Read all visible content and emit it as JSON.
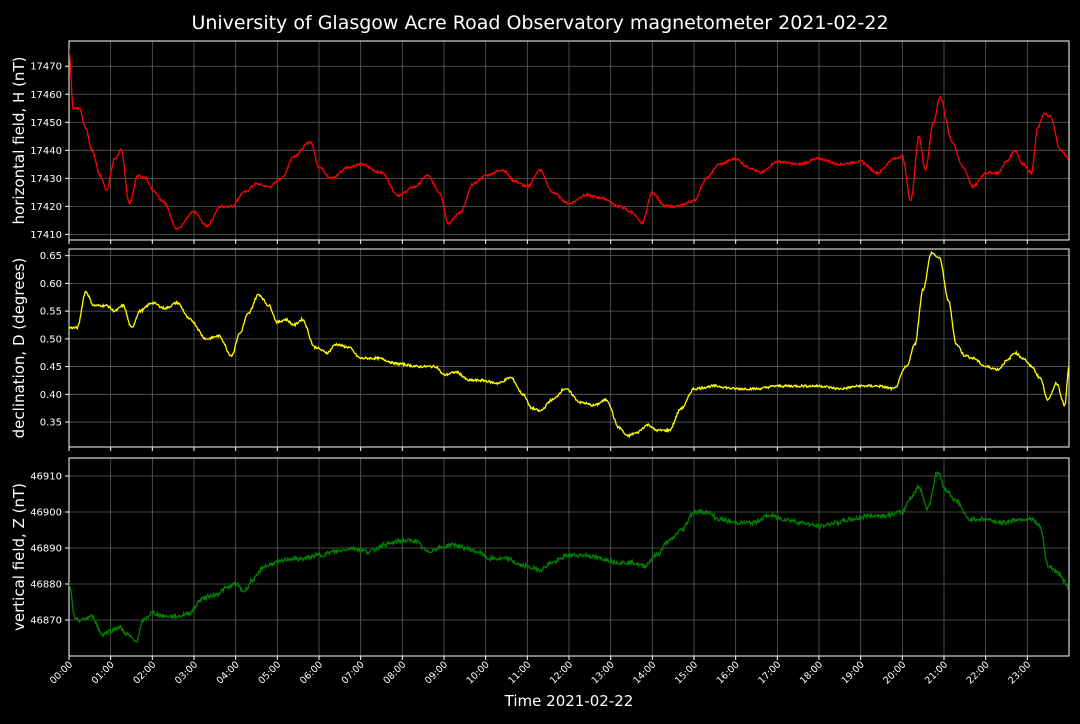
{
  "chart_data": {
    "type": "line",
    "title": "University of Glasgow Acre Road Observatory magnetometer 2021-02-22",
    "xlabel": "Time 2021-02-22",
    "x_ticks": [
      "00:00",
      "01:00",
      "02:00",
      "03:00",
      "04:00",
      "05:00",
      "06:00",
      "07:00",
      "08:00",
      "09:00",
      "10:00",
      "11:00",
      "12:00",
      "13:00",
      "14:00",
      "15:00",
      "16:00",
      "17:00",
      "18:00",
      "19:00",
      "20:00",
      "21:00",
      "22:00",
      "23:00"
    ],
    "xlim": [
      0,
      24
    ],
    "x_unit": "hours",
    "grid": true,
    "background": "#000000",
    "panels": [
      {
        "ylabel": "horizontal field, H (nT)",
        "color": "#ff0000",
        "ylim": [
          17408,
          17479
        ],
        "y_ticks": [
          17410,
          17420,
          17430,
          17440,
          17450,
          17460,
          17470
        ],
        "x": [
          0,
          0.1,
          0.25,
          0.4,
          0.55,
          0.75,
          0.9,
          1.1,
          1.25,
          1.45,
          1.65,
          1.85,
          2.0,
          2.25,
          2.6,
          3.0,
          3.3,
          3.65,
          3.9,
          4.2,
          4.5,
          4.8,
          5.1,
          5.4,
          5.8,
          6.0,
          6.3,
          6.7,
          7.0,
          7.5,
          7.9,
          8.3,
          8.6,
          8.9,
          9.1,
          9.4,
          9.7,
          10.0,
          10.4,
          10.7,
          11.0,
          11.3,
          11.6,
          12.0,
          12.4,
          12.8,
          13.2,
          13.5,
          13.75,
          14.0,
          14.3,
          14.6,
          15.0,
          15.3,
          15.6,
          16.0,
          16.3,
          16.6,
          17.0,
          17.5,
          18.0,
          18.5,
          19.0,
          19.4,
          19.8,
          20.0,
          20.2,
          20.4,
          20.55,
          20.75,
          20.9,
          21.2,
          21.45,
          21.7,
          22.0,
          22.3,
          22.5,
          22.7,
          22.9,
          23.1,
          23.25,
          23.4,
          23.55,
          23.8,
          24.0
        ],
        "y": [
          17476,
          17455,
          17455,
          17448,
          17440,
          17431,
          17426,
          17437,
          17440,
          17421,
          17431,
          17430,
          17426,
          17422,
          17412,
          17418,
          17413,
          17420,
          17420,
          17425,
          17428,
          17427,
          17430,
          17438,
          17443,
          17434,
          17430,
          17434,
          17435,
          17432,
          17424,
          17427,
          17431,
          17425,
          17414,
          17418,
          17428,
          17431,
          17433,
          17429,
          17427,
          17433,
          17425,
          17421,
          17424,
          17423,
          17420,
          17418,
          17414,
          17425,
          17420,
          17420,
          17422,
          17430,
          17435,
          17437,
          17434,
          17432,
          17436,
          17435,
          17437,
          17435,
          17436,
          17432,
          17437,
          17438,
          17422,
          17445,
          17433,
          17450,
          17459,
          17443,
          17434,
          17427,
          17432,
          17432,
          17436,
          17440,
          17435,
          17432,
          17448,
          17453,
          17452,
          17440,
          17437
        ]
      },
      {
        "ylabel": "declination, D (degrees)",
        "color": "#ffff00",
        "ylim": [
          0.305,
          0.662
        ],
        "y_ticks": [
          0.35,
          0.4,
          0.45,
          0.5,
          0.55,
          0.6,
          0.65
        ],
        "x": [
          0,
          0.2,
          0.4,
          0.6,
          0.9,
          1.1,
          1.3,
          1.5,
          1.7,
          2.0,
          2.3,
          2.6,
          2.9,
          3.3,
          3.6,
          3.9,
          4.1,
          4.3,
          4.55,
          4.8,
          5.0,
          5.2,
          5.4,
          5.6,
          5.9,
          6.2,
          6.4,
          6.7,
          7.0,
          7.4,
          7.9,
          8.4,
          8.8,
          9.0,
          9.3,
          9.6,
          9.9,
          10.3,
          10.6,
          10.9,
          11.1,
          11.3,
          11.6,
          11.9,
          12.3,
          12.6,
          12.9,
          13.2,
          13.4,
          13.6,
          13.9,
          14.1,
          14.4,
          14.7,
          15.0,
          15.5,
          16.0,
          16.5,
          17.0,
          17.5,
          18.0,
          18.5,
          19.0,
          19.4,
          19.8,
          20.1,
          20.3,
          20.5,
          20.7,
          20.9,
          21.1,
          21.3,
          21.5,
          21.7,
          22.0,
          22.3,
          22.5,
          22.7,
          22.9,
          23.1,
          23.3,
          23.5,
          23.7,
          23.9,
          24.0
        ],
        "y": [
          0.52,
          0.52,
          0.585,
          0.56,
          0.56,
          0.55,
          0.56,
          0.52,
          0.55,
          0.565,
          0.555,
          0.565,
          0.535,
          0.5,
          0.505,
          0.47,
          0.51,
          0.545,
          0.58,
          0.56,
          0.53,
          0.535,
          0.525,
          0.535,
          0.485,
          0.475,
          0.49,
          0.485,
          0.465,
          0.465,
          0.455,
          0.45,
          0.45,
          0.435,
          0.44,
          0.425,
          0.425,
          0.42,
          0.43,
          0.4,
          0.375,
          0.37,
          0.39,
          0.41,
          0.385,
          0.38,
          0.39,
          0.34,
          0.325,
          0.33,
          0.345,
          0.335,
          0.335,
          0.375,
          0.41,
          0.415,
          0.41,
          0.41,
          0.415,
          0.415,
          0.415,
          0.41,
          0.415,
          0.415,
          0.41,
          0.45,
          0.49,
          0.59,
          0.655,
          0.645,
          0.57,
          0.49,
          0.47,
          0.465,
          0.45,
          0.445,
          0.46,
          0.475,
          0.465,
          0.45,
          0.43,
          0.39,
          0.42,
          0.38,
          0.45
        ]
      },
      {
        "ylabel": "vertical field, Z (nT)",
        "color": "#008000",
        "ylim": [
          46860,
          46915
        ],
        "y_ticks": [
          46870,
          46880,
          46890,
          46900,
          46910
        ],
        "x": [
          0,
          0.15,
          0.3,
          0.55,
          0.8,
          1.0,
          1.2,
          1.4,
          1.6,
          1.8,
          2.0,
          2.3,
          2.6,
          2.9,
          3.2,
          3.5,
          3.8,
          4.0,
          4.2,
          4.4,
          4.7,
          5.0,
          5.3,
          5.6,
          6.0,
          6.4,
          6.8,
          7.2,
          7.6,
          8.0,
          8.3,
          8.6,
          8.9,
          9.2,
          9.5,
          9.8,
          10.1,
          10.5,
          10.9,
          11.3,
          11.6,
          12.0,
          12.4,
          12.8,
          13.2,
          13.5,
          13.8,
          14.1,
          14.4,
          14.7,
          15.0,
          15.3,
          15.6,
          16.0,
          16.4,
          16.8,
          17.2,
          17.6,
          18.0,
          18.4,
          18.8,
          19.2,
          19.6,
          20.0,
          20.2,
          20.4,
          20.6,
          20.85,
          21.05,
          21.3,
          21.6,
          22.0,
          22.4,
          22.8,
          23.1,
          23.3,
          23.5,
          23.75,
          24.0
        ],
        "y": [
          46880,
          46870,
          46870,
          46871,
          46866,
          46867,
          46868,
          46866,
          46864,
          46870,
          46872,
          46871,
          46871,
          46872,
          46876,
          46877,
          46879,
          46880,
          46878,
          46881,
          46885,
          46886,
          46887,
          46887,
          46888,
          46889,
          46890,
          46889,
          46891,
          46892,
          46892,
          46889,
          46890,
          46891,
          46890,
          46889,
          46887,
          46887,
          46885,
          46884,
          46886,
          46888,
          46888,
          46887,
          46886,
          46886,
          46885,
          46888,
          46892,
          46895,
          46900,
          46900,
          46898,
          46897,
          46897,
          46899,
          46898,
          46897,
          46896,
          46897,
          46898,
          46899,
          46899,
          46900,
          46904,
          46907,
          46901,
          46911,
          46906,
          46903,
          46898,
          46898,
          46897,
          46898,
          46898,
          46896,
          46885,
          46883,
          46879
        ]
      }
    ]
  }
}
